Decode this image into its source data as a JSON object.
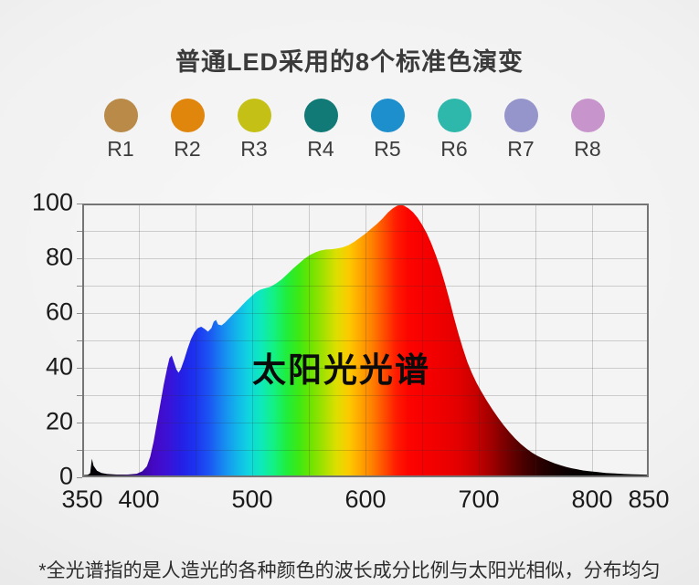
{
  "title": "普通LED采用的8个标准色演变",
  "footnote": "*全光谱指的是人造光的各种颜色的波长成分比例与太阳光相似，分布均匀",
  "swatches": [
    {
      "label": "R1",
      "color": "#b98a48"
    },
    {
      "label": "R2",
      "color": "#e0860d"
    },
    {
      "label": "R3",
      "color": "#c5c016"
    },
    {
      "label": "R4",
      "color": "#127a76"
    },
    {
      "label": "R5",
      "color": "#1d8fcd"
    },
    {
      "label": "R6",
      "color": "#2eb8ab"
    },
    {
      "label": "R7",
      "color": "#9595cb"
    },
    {
      "label": "R8",
      "color": "#c795cc"
    }
  ],
  "chart_data": {
    "type": "area",
    "annotation": "太阳光光谱",
    "xlabel": "",
    "ylabel": "",
    "xlim": [
      350,
      850
    ],
    "ylim": [
      0,
      100
    ],
    "x_ticks": [
      350,
      400,
      500,
      600,
      700,
      800,
      850
    ],
    "y_ticks": [
      0,
      20,
      40,
      60,
      80,
      100
    ],
    "grid_step_x": 50,
    "grid_step_y": 10,
    "legend": "none",
    "grid": "on",
    "series": [
      {
        "name": "太阳光光谱",
        "points": [
          [
            350,
            0.8
          ],
          [
            355,
            0.9
          ],
          [
            357,
            1.5
          ],
          [
            358.5,
            6.8
          ],
          [
            360,
            4.2
          ],
          [
            363,
            2.4
          ],
          [
            367,
            1.6
          ],
          [
            372,
            1.2
          ],
          [
            380,
            1
          ],
          [
            390,
            1
          ],
          [
            398,
            1.3
          ],
          [
            403,
            2.2
          ],
          [
            407,
            4
          ],
          [
            410,
            7.5
          ],
          [
            413,
            13
          ],
          [
            416,
            20
          ],
          [
            419,
            27
          ],
          [
            422,
            34
          ],
          [
            425,
            40
          ],
          [
            427,
            43.5
          ],
          [
            429,
            44.5
          ],
          [
            431,
            42
          ],
          [
            433,
            39.5
          ],
          [
            435,
            38.2
          ],
          [
            437,
            39.5
          ],
          [
            440,
            43
          ],
          [
            443,
            47
          ],
          [
            446,
            50.5
          ],
          [
            449,
            53
          ],
          [
            452,
            54.5
          ],
          [
            455,
            55
          ],
          [
            458,
            54.2
          ],
          [
            461,
            53.2
          ],
          [
            464,
            54.5
          ],
          [
            466,
            56.8
          ],
          [
            468,
            57.5
          ],
          [
            470,
            55.8
          ],
          [
            473,
            55.5
          ],
          [
            476,
            56.5
          ],
          [
            479,
            57.8
          ],
          [
            483,
            59.5
          ],
          [
            487,
            61
          ],
          [
            491,
            62.8
          ],
          [
            495,
            64.5
          ],
          [
            499,
            66
          ],
          [
            503,
            67.5
          ],
          [
            507,
            68.5
          ],
          [
            511,
            69
          ],
          [
            516,
            69.6
          ],
          [
            521,
            70.8
          ],
          [
            526,
            72.3
          ],
          [
            531,
            74.2
          ],
          [
            536,
            76.2
          ],
          [
            541,
            78
          ],
          [
            546,
            79.8
          ],
          [
            551,
            81.2
          ],
          [
            556,
            82.2
          ],
          [
            560,
            82.8
          ],
          [
            565,
            83.2
          ],
          [
            570,
            83.3
          ],
          [
            575,
            83.6
          ],
          [
            580,
            84
          ],
          [
            585,
            84.8
          ],
          [
            590,
            86
          ],
          [
            595,
            87.5
          ],
          [
            600,
            89
          ],
          [
            605,
            90.8
          ],
          [
            610,
            92.5
          ],
          [
            615,
            94.5
          ],
          [
            620,
            96.8
          ],
          [
            624,
            98.2
          ],
          [
            628,
            99.2
          ],
          [
            631,
            99.5
          ],
          [
            634,
            99.2
          ],
          [
            638,
            98.2
          ],
          [
            642,
            96.8
          ],
          [
            646,
            94.8
          ],
          [
            650,
            92.2
          ],
          [
            654,
            89.2
          ],
          [
            658,
            85.5
          ],
          [
            662,
            81.2
          ],
          [
            666,
            76.5
          ],
          [
            670,
            71
          ],
          [
            674,
            65
          ],
          [
            678,
            58.5
          ],
          [
            682,
            52.5
          ],
          [
            686,
            47
          ],
          [
            690,
            42
          ],
          [
            694,
            38
          ],
          [
            698,
            34.5
          ],
          [
            702,
            31.5
          ],
          [
            707,
            28
          ],
          [
            712,
            24.8
          ],
          [
            717,
            21.8
          ],
          [
            722,
            19
          ],
          [
            727,
            16.5
          ],
          [
            732,
            14.2
          ],
          [
            737,
            12.2
          ],
          [
            742,
            10.5
          ],
          [
            747,
            9
          ],
          [
            752,
            7.8
          ],
          [
            757,
            6.8
          ],
          [
            762,
            5.9
          ],
          [
            767,
            5.1
          ],
          [
            772,
            4.4
          ],
          [
            777,
            3.8
          ],
          [
            782,
            3.3
          ],
          [
            787,
            2.9
          ],
          [
            792,
            2.5
          ],
          [
            798,
            2.2
          ],
          [
            805,
            1.9
          ],
          [
            812,
            1.6
          ],
          [
            820,
            1.4
          ],
          [
            828,
            1.2
          ],
          [
            836,
            1.1
          ],
          [
            844,
            1
          ],
          [
            850,
            0.9
          ]
        ]
      }
    ],
    "gradient_stops": [
      [
        350,
        "#000000"
      ],
      [
        376,
        "#070011"
      ],
      [
        390,
        "#26045c"
      ],
      [
        402,
        "#3a06a0"
      ],
      [
        414,
        "#4509c6"
      ],
      [
        426,
        "#3a12d6"
      ],
      [
        438,
        "#2420e6"
      ],
      [
        450,
        "#1c33f0"
      ],
      [
        462,
        "#1b55f2"
      ],
      [
        474,
        "#1787f0"
      ],
      [
        486,
        "#12b4ea"
      ],
      [
        497,
        "#0fd6df"
      ],
      [
        508,
        "#0ee9bb"
      ],
      [
        519,
        "#13f184"
      ],
      [
        530,
        "#1fee3e"
      ],
      [
        541,
        "#3ce914"
      ],
      [
        552,
        "#6fe400"
      ],
      [
        563,
        "#a4e000"
      ],
      [
        574,
        "#dcdf00"
      ],
      [
        585,
        "#fccb00"
      ],
      [
        596,
        "#ffa400"
      ],
      [
        607,
        "#ff7b00"
      ],
      [
        617,
        "#ff4b00"
      ],
      [
        627,
        "#ff1c00"
      ],
      [
        638,
        "#fc0400"
      ],
      [
        652,
        "#f60000"
      ],
      [
        668,
        "#ee0000"
      ],
      [
        684,
        "#e00000"
      ],
      [
        698,
        "#c60000"
      ],
      [
        712,
        "#9e0000"
      ],
      [
        726,
        "#700000"
      ],
      [
        740,
        "#480000"
      ],
      [
        754,
        "#2a0000"
      ],
      [
        768,
        "#150000"
      ],
      [
        782,
        "#090000"
      ],
      [
        800,
        "#020000"
      ],
      [
        850,
        "#000000"
      ]
    ]
  }
}
